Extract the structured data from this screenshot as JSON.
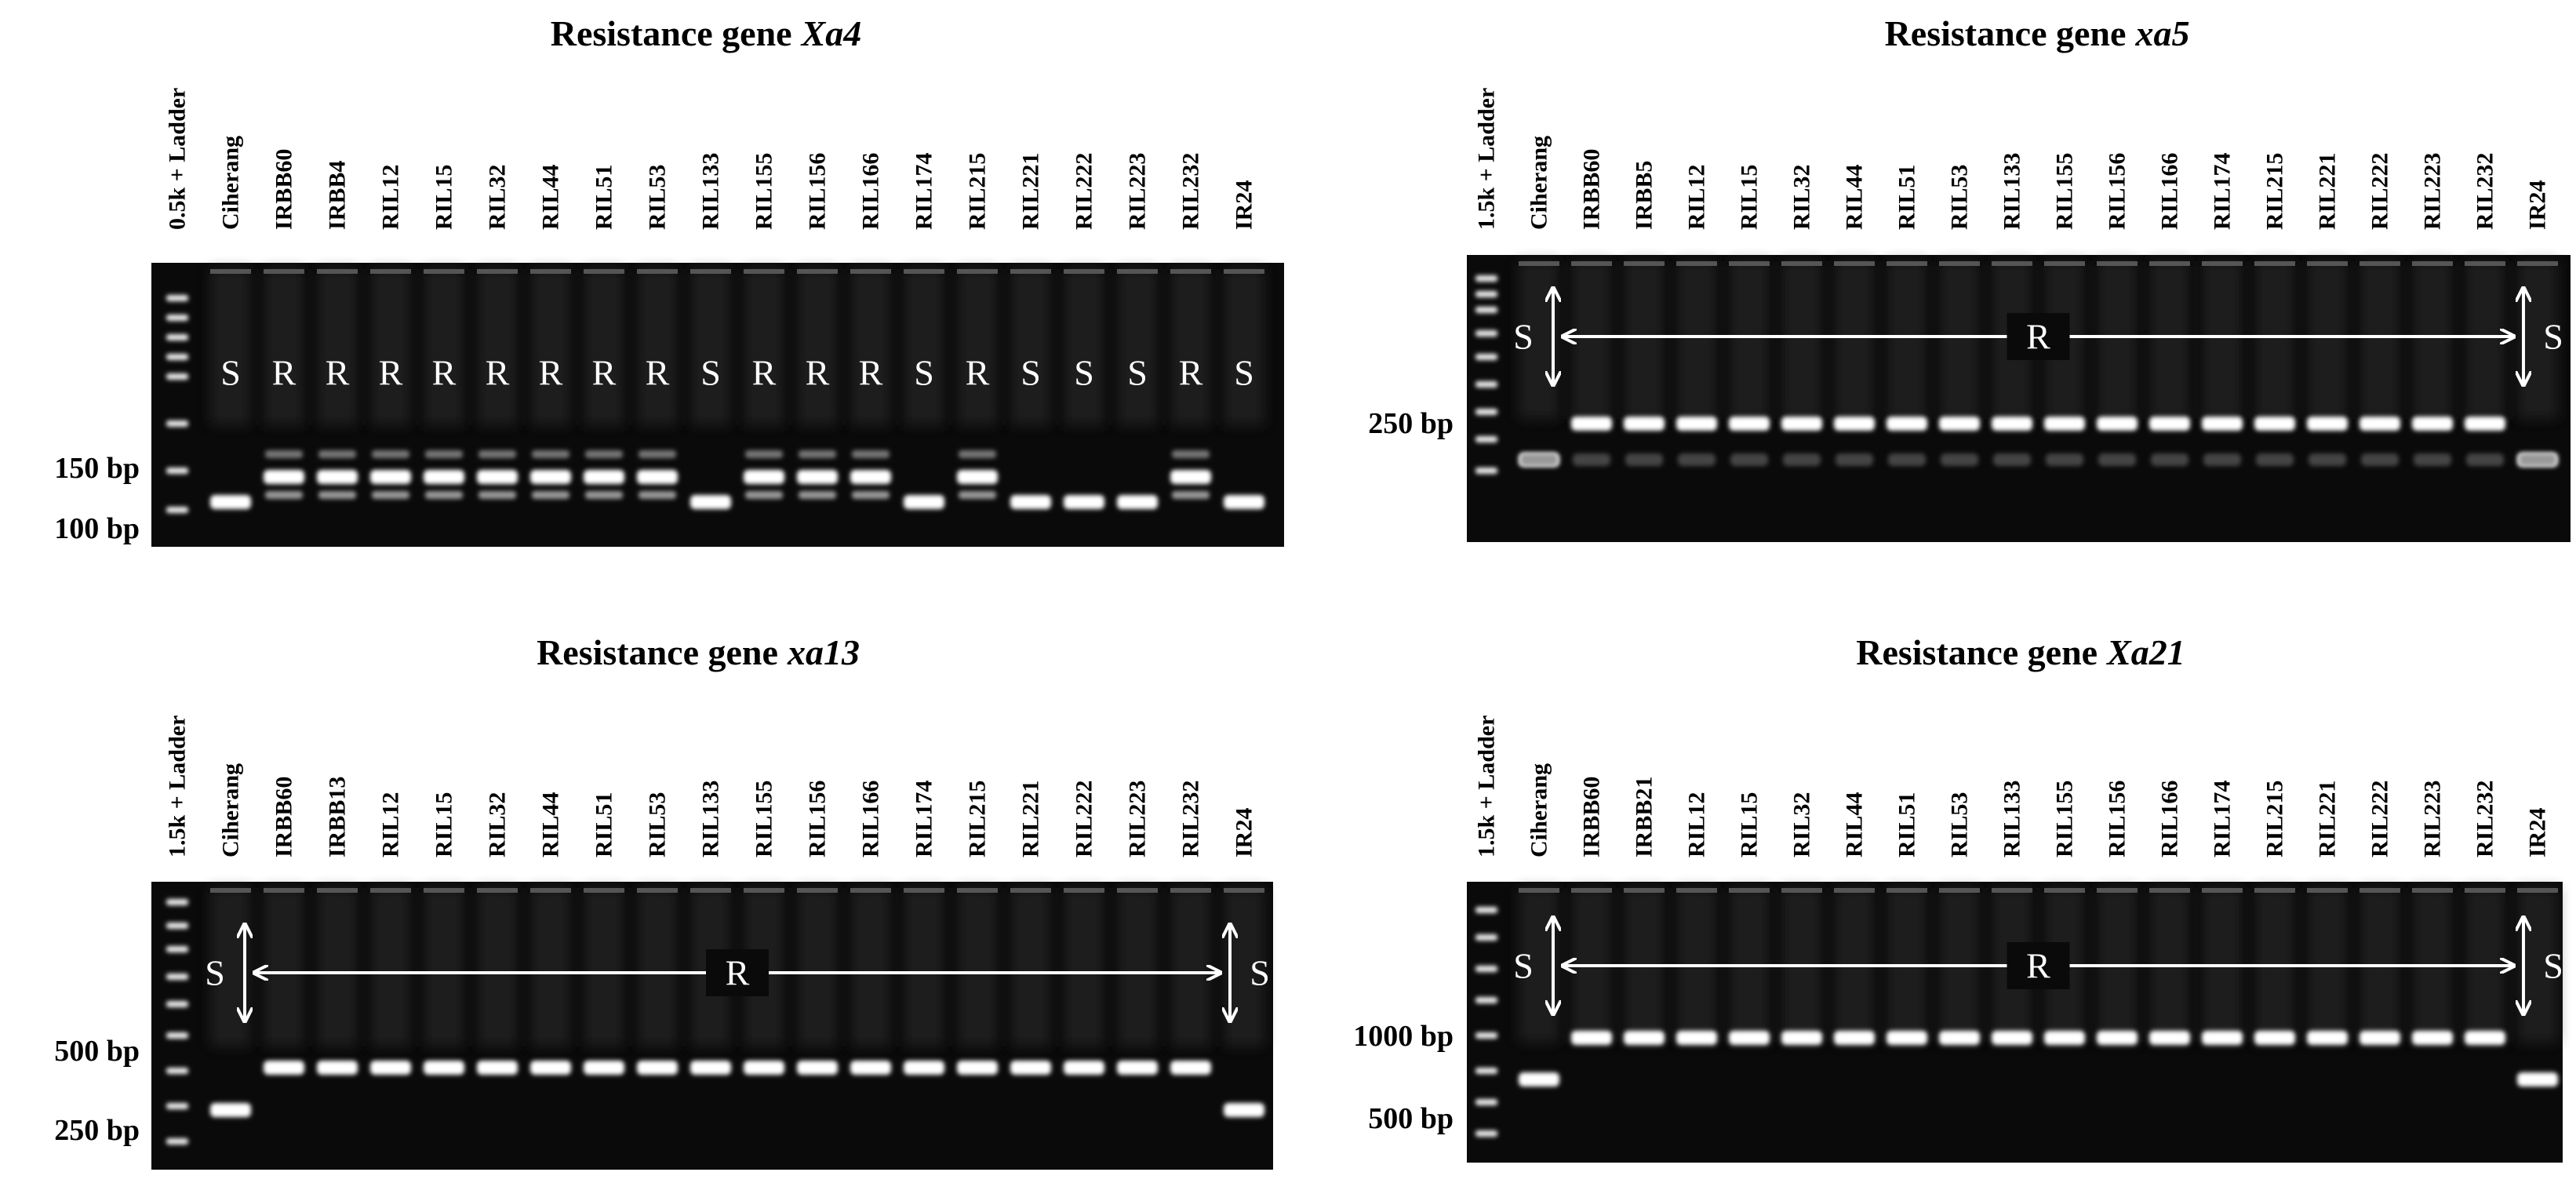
{
  "panels": [
    {
      "title": {
        "prefix": "Resistance gene",
        "gene": "Xa4"
      },
      "lanes": [
        "0.5k + Ladder",
        "Ciherang",
        "IRBB60",
        "IRBB4",
        "RIL12",
        "RIL15",
        "RIL32",
        "RIL44",
        "RIL51",
        "RIL53",
        "RIL133",
        "RIL155",
        "RIL156",
        "RIL166",
        "RIL174",
        "RIL215",
        "RIL221",
        "RIL222",
        "RIL223",
        "RIL232",
        "IR24"
      ],
      "size_markers": [
        "150 bp",
        "100 bp"
      ],
      "calls": [
        "S",
        "R",
        "R",
        "R",
        "R",
        "R",
        "R",
        "R",
        "R",
        "S",
        "R",
        "R",
        "R",
        "S",
        "R",
        "S",
        "S",
        "S",
        "R",
        "S"
      ]
    },
    {
      "title": {
        "prefix": "Resistance gene",
        "gene": "xa5"
      },
      "lanes": [
        "1.5k + Ladder",
        "Ciherang",
        "IRBB60",
        "IRBB5",
        "RIL12",
        "RIL15",
        "RIL32",
        "RIL44",
        "RIL51",
        "RIL53",
        "RIL133",
        "RIL155",
        "RIL156",
        "RIL166",
        "RIL174",
        "RIL215",
        "RIL221",
        "RIL222",
        "RIL223",
        "RIL232",
        "IR24"
      ],
      "size_markers": [
        "250 bp"
      ],
      "calls": {
        "left": "S",
        "middle": "R",
        "right": "S"
      }
    },
    {
      "title": {
        "prefix": "Resistance gene",
        "gene": "xa13"
      },
      "lanes": [
        "1.5k + Ladder",
        "Ciherang",
        "IRBB60",
        "IRBB13",
        "RIL12",
        "RIL15",
        "RIL32",
        "RIL44",
        "RIL51",
        "RIL53",
        "RIL133",
        "RIL155",
        "RIL156",
        "RIL166",
        "RIL174",
        "RIL215",
        "RIL221",
        "RIL222",
        "RIL223",
        "RIL232",
        "IR24"
      ],
      "size_markers": [
        "500 bp",
        "250 bp"
      ],
      "calls": {
        "left": "S",
        "middle": "R",
        "right": "S"
      }
    },
    {
      "title": {
        "prefix": "Resistance gene",
        "gene": "Xa21"
      },
      "lanes": [
        "1.5k + Ladder",
        "Ciherang",
        "IRBB60",
        "IRBB21",
        "RIL12",
        "RIL15",
        "RIL32",
        "RIL44",
        "RIL51",
        "RIL53",
        "RIL133",
        "RIL155",
        "RIL156",
        "RIL166",
        "RIL174",
        "RIL215",
        "RIL221",
        "RIL222",
        "RIL223",
        "RIL232",
        "IR24"
      ],
      "size_markers": [
        "1000 bp",
        "500 bp"
      ],
      "calls": {
        "left": "S",
        "middle": "R",
        "right": "S"
      }
    }
  ]
}
